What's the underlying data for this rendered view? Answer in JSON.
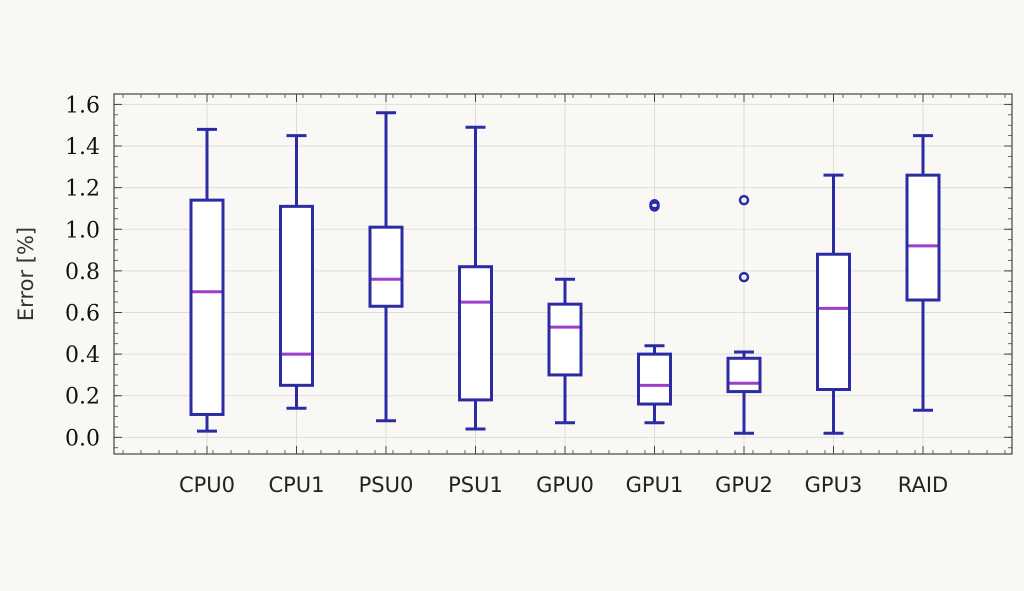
{
  "chart_data": {
    "type": "boxplot",
    "title": "",
    "xlabel": "",
    "ylabel": "Error [%]",
    "ylim": [
      -0.08,
      1.65
    ],
    "yticks": [
      "0.0",
      "0.2",
      "0.4",
      "0.6",
      "0.8",
      "1.0",
      "1.2",
      "1.4",
      "1.6"
    ],
    "grid": true,
    "colors": {
      "box": "#2b2ba3",
      "median": "#9b3fc9",
      "grid": "#dddddd",
      "axis": "#444444",
      "background": "#faf8f5"
    },
    "categories": [
      "CPU0",
      "CPU1",
      "PSU0",
      "PSU1",
      "GPU0",
      "GPU1",
      "GPU2",
      "GPU3",
      "RAID"
    ],
    "boxes": [
      {
        "label": "CPU0",
        "whisker_low": 0.03,
        "q1": 0.11,
        "median": 0.7,
        "q3": 1.14,
        "whisker_high": 1.48,
        "outliers": []
      },
      {
        "label": "CPU1",
        "whisker_low": 0.14,
        "q1": 0.25,
        "median": 0.4,
        "q3": 1.11,
        "whisker_high": 1.45,
        "outliers": []
      },
      {
        "label": "PSU0",
        "whisker_low": 0.08,
        "q1": 0.63,
        "median": 0.76,
        "q3": 1.01,
        "whisker_high": 1.56,
        "outliers": []
      },
      {
        "label": "PSU1",
        "whisker_low": 0.04,
        "q1": 0.18,
        "median": 0.65,
        "q3": 0.82,
        "whisker_high": 1.49,
        "outliers": []
      },
      {
        "label": "GPU0",
        "whisker_low": 0.07,
        "q1": 0.3,
        "median": 0.53,
        "q3": 0.64,
        "whisker_high": 0.76,
        "outliers": []
      },
      {
        "label": "GPU1",
        "whisker_low": 0.07,
        "q1": 0.16,
        "median": 0.25,
        "q3": 0.4,
        "whisker_high": 0.44,
        "outliers": [
          1.11,
          1.12
        ]
      },
      {
        "label": "GPU2",
        "whisker_low": 0.02,
        "q1": 0.22,
        "median": 0.26,
        "q3": 0.38,
        "whisker_high": 0.41,
        "outliers": [
          0.77,
          1.14
        ]
      },
      {
        "label": "GPU3",
        "whisker_low": 0.02,
        "q1": 0.23,
        "median": 0.62,
        "q3": 0.88,
        "whisker_high": 1.26,
        "outliers": []
      },
      {
        "label": "RAID",
        "whisker_low": 0.13,
        "q1": 0.66,
        "median": 0.92,
        "q3": 1.26,
        "whisker_high": 1.45,
        "outliers": []
      }
    ]
  }
}
